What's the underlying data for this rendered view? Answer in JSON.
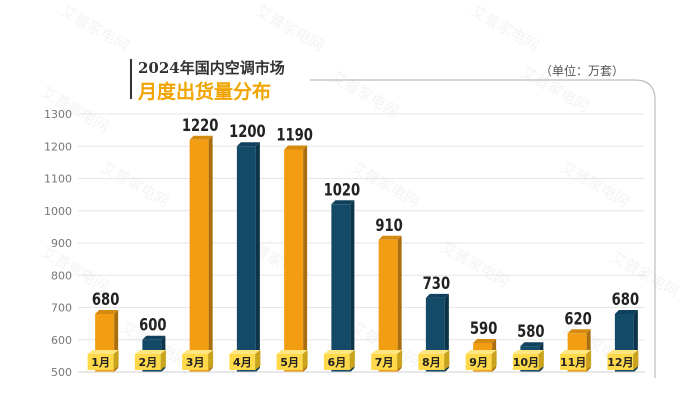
{
  "title": {
    "line1": "2024年国内空调市场",
    "line2": "月度出货量分布"
  },
  "unit_label": "（单位：万套）",
  "watermark": "艾普家电网",
  "colors": {
    "orange": "#f29d12",
    "navy": "#124a68",
    "label_plate": "#ffd94a",
    "grid": "#e6e6e6",
    "title_accent": "#f0a400"
  },
  "chart_data": {
    "type": "bar",
    "categories": [
      "1月",
      "2月",
      "3月",
      "4月",
      "5月",
      "6月",
      "7月",
      "8月",
      "9月",
      "10月",
      "11月",
      "12月"
    ],
    "values": [
      680,
      600,
      1220,
      1200,
      1190,
      1020,
      910,
      730,
      590,
      580,
      620,
      680
    ],
    "bar_colors": [
      "orange",
      "navy",
      "orange",
      "navy",
      "orange",
      "navy",
      "orange",
      "navy",
      "orange",
      "navy",
      "orange",
      "navy"
    ],
    "yticks": [
      500,
      600,
      700,
      800,
      900,
      1000,
      1100,
      1200,
      1300
    ],
    "ylim": [
      500,
      1300
    ],
    "grid": true,
    "title": "2024年国内空调市场 月度出货量分布",
    "xlabel": "",
    "ylabel": ""
  }
}
